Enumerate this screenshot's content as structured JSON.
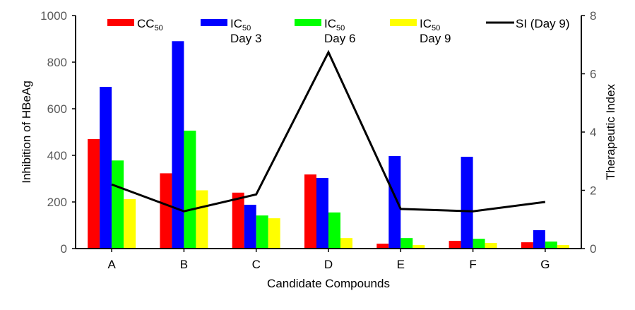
{
  "chart_data": {
    "type": "bar",
    "title": "",
    "xlabel": "Candidate Compounds",
    "ylabel": "Inhibition of HBeAg",
    "y2label": "Therapeutic Index",
    "ylim": [
      0,
      1000
    ],
    "y2lim": [
      0,
      8
    ],
    "yticks": [
      0,
      200,
      400,
      600,
      800,
      1000
    ],
    "y2ticks": [
      0,
      2,
      4,
      6,
      8
    ],
    "grid": false,
    "legend_position": "top",
    "categories": [
      "A",
      "B",
      "C",
      "D",
      "E",
      "F",
      "G"
    ],
    "series": [
      {
        "name": "CC50",
        "label_main": "CC",
        "label_sub": "50",
        "label_line2": "",
        "type": "bar",
        "axis": "left",
        "color": "#FF0000",
        "values": [
          470,
          323,
          240,
          318,
          21,
          33,
          27
        ]
      },
      {
        "name": "IC50 Day 3",
        "label_main": "IC",
        "label_sub": "50",
        "label_line2": "Day 3",
        "type": "bar",
        "axis": "left",
        "color": "#0000FF",
        "values": [
          694,
          890,
          188,
          303,
          397,
          394,
          79
        ]
      },
      {
        "name": "IC50 Day 6",
        "label_main": "IC",
        "label_sub": "50",
        "label_line2": "Day 6",
        "type": "bar",
        "axis": "left",
        "color": "#00FF00",
        "values": [
          378,
          506,
          142,
          155,
          45,
          42,
          30
        ]
      },
      {
        "name": "IC50 Day 9",
        "label_main": "IC",
        "label_sub": "50",
        "label_line2": "Day 9",
        "type": "bar",
        "axis": "left",
        "color": "#FFFF00",
        "values": [
          212,
          250,
          130,
          45,
          15,
          24,
          15
        ]
      },
      {
        "name": "SI (Day 9)",
        "label_main": "SI (Day 9)",
        "label_sub": "",
        "label_line2": "",
        "type": "line",
        "axis": "right",
        "color": "#000000",
        "values": [
          2.2,
          1.28,
          1.86,
          6.74,
          1.36,
          1.28,
          1.6
        ]
      }
    ]
  }
}
